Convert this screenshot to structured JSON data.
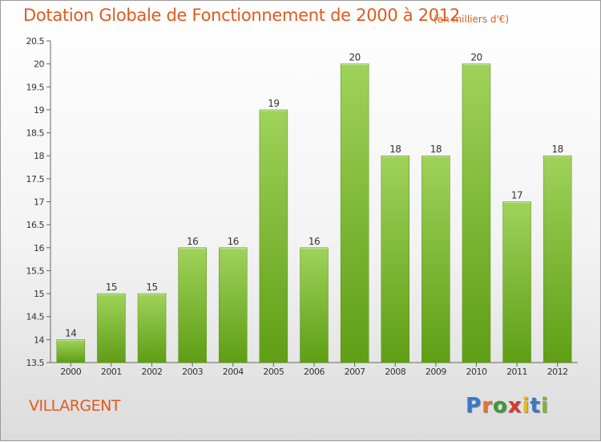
{
  "header": {
    "title": "Dotation Globale de Fonctionnement de 2000 à 2012",
    "unit": "(en milliers d'€)"
  },
  "footer": {
    "commune": "VILLARGENT",
    "logo_text": "Proxiti"
  },
  "colors": {
    "title": "#e05a1e",
    "bar_top": "#9fd25a",
    "bar_bottom": "#5f9e15",
    "logo": [
      "#3a78c8",
      "#e9742b",
      "#3a9a3a",
      "#d63a2f",
      "#e6b81e",
      "#3a78c8",
      "#7fb53a"
    ]
  },
  "chart_data": {
    "type": "bar",
    "categories": [
      "2000",
      "2001",
      "2002",
      "2003",
      "2004",
      "2005",
      "2006",
      "2007",
      "2008",
      "2009",
      "2010",
      "2011",
      "2012"
    ],
    "values": [
      14,
      15,
      15,
      16,
      16,
      19,
      16,
      20,
      18,
      18,
      20,
      17,
      18
    ],
    "ylim": [
      13.5,
      20.5
    ],
    "yticks": [
      "13.5",
      "14",
      "14.5",
      "15",
      "15.5",
      "16",
      "16.5",
      "17",
      "17.5",
      "18",
      "18.5",
      "19",
      "19.5",
      "20",
      "20.5"
    ],
    "grid": false,
    "title": "Dotation Globale de Fonctionnement de 2000 à 2012",
    "xlabel": "",
    "ylabel": ""
  }
}
